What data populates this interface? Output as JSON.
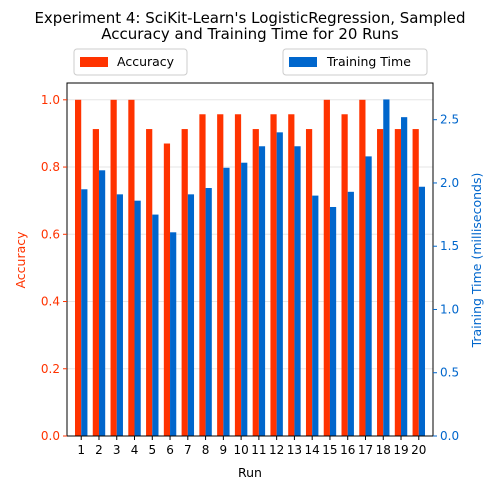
{
  "chart_data": {
    "type": "bar",
    "title_line1": "Experiment 4: SciKit-Learn's LogisticRegression, Sampled",
    "title_line2": "Accuracy and Training Time for 20 Runs",
    "xlabel": "Run",
    "ylabel_left": "Accuracy",
    "ylabel_right": "Training Time (milliseconds)",
    "categories": [
      "1",
      "2",
      "3",
      "4",
      "5",
      "6",
      "7",
      "8",
      "9",
      "10",
      "11",
      "12",
      "13",
      "14",
      "15",
      "16",
      "17",
      "18",
      "19",
      "20"
    ],
    "ylim_left": [
      0,
      1.05
    ],
    "ylim_right": [
      0,
      2.79
    ],
    "yticks_left": [
      "0.0",
      "0.2",
      "0.4",
      "0.6",
      "0.8",
      "1.0"
    ],
    "yticks_right": [
      "0.0",
      "0.5",
      "1.0",
      "1.5",
      "2.0",
      "2.5"
    ],
    "grid": true,
    "legend_left_placement": "top-left",
    "legend_right_placement": "top-right",
    "series": [
      {
        "name": "Accuracy",
        "axis": "left",
        "color": "#ff3300",
        "values": [
          1.0,
          0.913,
          1.0,
          1.0,
          0.913,
          0.87,
          0.913,
          0.957,
          0.957,
          0.957,
          0.913,
          0.957,
          0.957,
          0.913,
          1.0,
          0.957,
          1.0,
          0.913,
          0.913,
          0.913
        ]
      },
      {
        "name": "Training Time",
        "axis": "right",
        "color": "#0066cc",
        "values": [
          1.95,
          2.1,
          1.91,
          1.86,
          1.75,
          1.61,
          1.91,
          1.96,
          2.12,
          2.16,
          2.29,
          2.4,
          2.29,
          1.9,
          1.81,
          1.93,
          2.21,
          2.66,
          2.52,
          1.97
        ]
      }
    ]
  }
}
